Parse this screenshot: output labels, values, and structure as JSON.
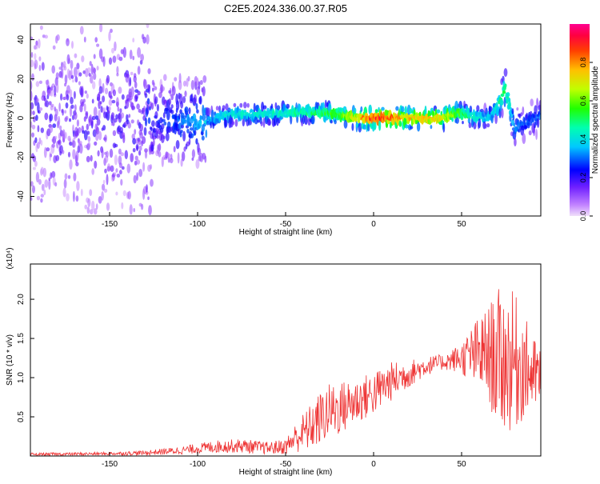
{
  "window_title": "C2E5.2024.336.00.37.R05",
  "chart_data": [
    {
      "type": "heatmap",
      "title": "C2E5.2024.336.00.37.R05",
      "xlabel": "Height of straight line (km)",
      "ylabel": "Frequency (Hz)",
      "xlim": [
        -195,
        95
      ],
      "ylim": [
        -50,
        48
      ],
      "xticks": [
        -150,
        -100,
        -50,
        0,
        50
      ],
      "xtick_labels": [
        "-150",
        "-100",
        "-50",
        "0",
        "50"
      ],
      "yticks": [
        -40,
        -20,
        0,
        20,
        40
      ],
      "ytick_labels": [
        "-40",
        "-20",
        "0",
        "20",
        "40"
      ],
      "colorbar": {
        "label": "Normalized spectral amplitude",
        "range": [
          0.0,
          1.0
        ],
        "ticks": [
          0.0,
          0.2,
          0.4,
          0.6,
          0.8
        ],
        "tick_labels": [
          "0.0",
          "0.2",
          "0.4",
          "0.6",
          "0.8"
        ],
        "colors": [
          "#e8d0f8",
          "#a040ff",
          "#5000ff",
          "#0000ff",
          "#00d8ff",
          "#00ff40",
          "#ffff00",
          "#ff8000",
          "#ff0000",
          "#ff0090"
        ]
      },
      "ridge": {
        "x": [
          -195,
          -150,
          -130,
          -120,
          -100,
          -80,
          -60,
          -40,
          -20,
          -10,
          0,
          10,
          20,
          40,
          48,
          55,
          65,
          70,
          75,
          80,
          85,
          95
        ],
        "freq": [
          0,
          0,
          0,
          -1,
          -2,
          2,
          2,
          3,
          2,
          0,
          0,
          0,
          0,
          0,
          3,
          1,
          0,
          5,
          15,
          -5,
          -3,
          1
        ],
        "amplitude": [
          0.15,
          0.15,
          0.2,
          0.25,
          0.35,
          0.45,
          0.45,
          0.5,
          0.6,
          0.75,
          0.95,
          0.9,
          0.8,
          0.75,
          0.6,
          0.5,
          0.4,
          0.45,
          0.55,
          0.35,
          0.3,
          0.3
        ]
      }
    },
    {
      "type": "line",
      "xlabel": "Height of straight line (km)",
      "ylabel": "SNR (10 * v/v)",
      "yscale_label": "(x10⁴)",
      "xlim": [
        -195,
        95
      ],
      "ylim": [
        0,
        2.45
      ],
      "xticks": [
        -150,
        -100,
        -50,
        0,
        50
      ],
      "xtick_labels": [
        "-150",
        "-100",
        "-50",
        "0",
        "50"
      ],
      "yticks": [
        0.5,
        1.0,
        1.5,
        2.0
      ],
      "ytick_labels": [
        "0.5",
        "1.0",
        "1.5",
        "2.0"
      ],
      "color": "#ee3333",
      "envelope": {
        "x": [
          -195,
          -150,
          -130,
          -110,
          -90,
          -75,
          -60,
          -50,
          -45,
          -40,
          -35,
          -30,
          -25,
          -20,
          -10,
          0,
          10,
          20,
          30,
          40,
          50,
          55,
          60,
          65,
          70,
          75,
          80,
          85,
          90,
          95
        ],
        "mean": [
          0.02,
          0.03,
          0.04,
          0.07,
          0.12,
          0.13,
          0.1,
          0.12,
          0.22,
          0.3,
          0.38,
          0.48,
          0.58,
          0.6,
          0.7,
          0.8,
          0.95,
          1.05,
          1.15,
          1.2,
          1.25,
          1.28,
          1.3,
          1.3,
          1.25,
          1.2,
          1.2,
          1.15,
          1.05,
          1.0
        ],
        "spread": [
          0.02,
          0.02,
          0.03,
          0.05,
          0.08,
          0.09,
          0.08,
          0.1,
          0.18,
          0.25,
          0.3,
          0.35,
          0.35,
          0.35,
          0.3,
          0.28,
          0.25,
          0.18,
          0.12,
          0.1,
          0.2,
          0.35,
          0.5,
          0.6,
          0.9,
          0.9,
          0.9,
          0.7,
          0.5,
          0.4
        ]
      }
    }
  ]
}
